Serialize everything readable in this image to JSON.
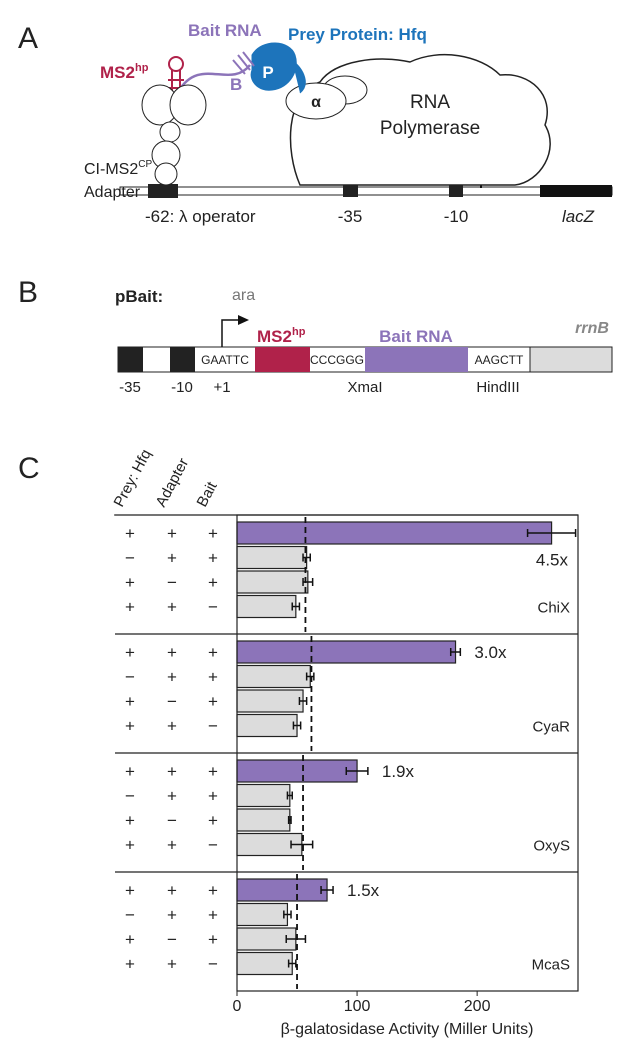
{
  "panel_a": {
    "label": "A",
    "bait_rna": "Bait RNA",
    "prey": "Prey Protein: Hfq",
    "ms2hp": "MS2",
    "ms2hp_sup": "hp",
    "b": "B",
    "p": "P",
    "alpha": "α",
    "rnap_1": "RNA",
    "rnap_2": "Polymerase",
    "adapter_1": "CI-MS2",
    "adapter_sup": "CP",
    "adapter_2": "Adapter",
    "operator": "-62: λ operator",
    "m35": "-35",
    "m10": "-10",
    "lacz": "lacZ"
  },
  "panel_b": {
    "label": "B",
    "plasmid": "pBait:",
    "promoter": "ara",
    "ms2hp": "MS2",
    "ms2hp_sup": "hp",
    "bait_rna": "Bait RNA",
    "terminator": "rrnB",
    "site1": "GAATTC",
    "site2": "CCCGGG",
    "site3": "AAGCTT",
    "m35": "-35",
    "m10": "-10",
    "plus1": "+1",
    "xmai": "XmaI",
    "hindiii": "HindIII"
  },
  "chart_data": {
    "type": "bar",
    "label": "C",
    "orientation": "horizontal",
    "column_headers": [
      "Prey: Hfq",
      "Adapter",
      "Bait"
    ],
    "xlabel": "β-galatosidase Activity (Miller Units)",
    "xlim": [
      0,
      284
    ],
    "xticks": [
      0,
      100,
      200
    ],
    "colors": [
      "#8c74b9",
      "#dcdcdc"
    ],
    "groups": [
      {
        "name": "ChiX",
        "fold": "4.5x",
        "baseline": 57,
        "conditions": [
          [
            "+",
            "+",
            "+"
          ],
          [
            "−",
            "+",
            "+"
          ],
          [
            "+",
            "−",
            "+"
          ],
          [
            "+",
            "+",
            "−"
          ]
        ],
        "values": [
          262,
          58,
          59,
          49
        ],
        "errors": [
          20,
          3,
          4,
          3
        ]
      },
      {
        "name": "CyaR",
        "fold": "3.0x",
        "baseline": 62,
        "conditions": [
          [
            "+",
            "+",
            "+"
          ],
          [
            "−",
            "+",
            "+"
          ],
          [
            "+",
            "−",
            "+"
          ],
          [
            "+",
            "+",
            "−"
          ]
        ],
        "values": [
          182,
          61,
          55,
          50
        ],
        "errors": [
          4,
          3,
          3,
          3
        ]
      },
      {
        "name": "OxyS",
        "fold": "1.9x",
        "baseline": 55,
        "conditions": [
          [
            "+",
            "+",
            "+"
          ],
          [
            "−",
            "+",
            "+"
          ],
          [
            "+",
            "−",
            "+"
          ],
          [
            "+",
            "+",
            "−"
          ]
        ],
        "values": [
          100,
          44,
          44,
          54
        ],
        "errors": [
          9,
          2,
          1,
          9
        ]
      },
      {
        "name": "McaS",
        "fold": "1.5x",
        "baseline": 50,
        "conditions": [
          [
            "+",
            "+",
            "+"
          ],
          [
            "−",
            "+",
            "+"
          ],
          [
            "+",
            "−",
            "+"
          ],
          [
            "+",
            "+",
            "−"
          ]
        ],
        "values": [
          75,
          42,
          49,
          46
        ],
        "errors": [
          5,
          3,
          8,
          3
        ]
      }
    ]
  }
}
